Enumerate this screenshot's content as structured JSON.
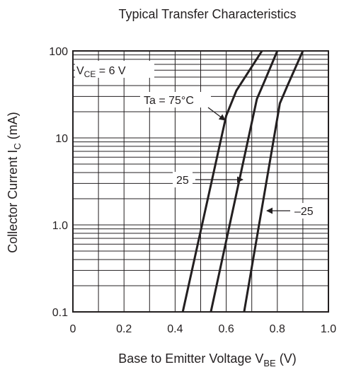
{
  "chart_data": {
    "type": "line",
    "title": "Typical Transfer Characteristics",
    "xlabel": {
      "main": "Base to Emitter Voltage  V",
      "sub": "BE",
      "unit": "  (V)"
    },
    "ylabel": {
      "main": "Collector Current  I",
      "sub": "C",
      "unit": "  (mA)"
    },
    "x_scale": "linear",
    "y_scale": "log",
    "xlim": [
      0,
      1.0
    ],
    "ylim": [
      0.1,
      100
    ],
    "x_ticks": [
      0,
      0.2,
      0.4,
      0.6,
      0.8,
      1.0
    ],
    "x_tick_labels": [
      "0",
      "0.2",
      "0.4",
      "0.6",
      "0.8",
      "1.0"
    ],
    "y_ticks": [
      0.1,
      1.0,
      10,
      100
    ],
    "y_tick_labels": [
      "0.1",
      "1.0",
      "10",
      "100"
    ],
    "grid": true,
    "condition": {
      "main": "V",
      "sub": "CE",
      "rest": " = 6 V"
    },
    "series": [
      {
        "name": "Ta = 75°C",
        "points": [
          [
            0.43,
            0.1
          ],
          [
            0.6,
            18
          ],
          [
            0.64,
            35
          ],
          [
            0.74,
            100
          ]
        ]
      },
      {
        "name": "25",
        "points": [
          [
            0.54,
            0.1
          ],
          [
            0.72,
            28
          ],
          [
            0.75,
            45
          ],
          [
            0.8,
            100
          ]
        ]
      },
      {
        "name": "–25",
        "points": [
          [
            0.67,
            0.1
          ],
          [
            0.81,
            25
          ],
          [
            0.84,
            40
          ],
          [
            0.9,
            100
          ]
        ]
      }
    ],
    "annotations": [
      {
        "text": "Ta = 75°C"
      },
      {
        "text": "25"
      },
      {
        "text": "–25"
      }
    ]
  }
}
